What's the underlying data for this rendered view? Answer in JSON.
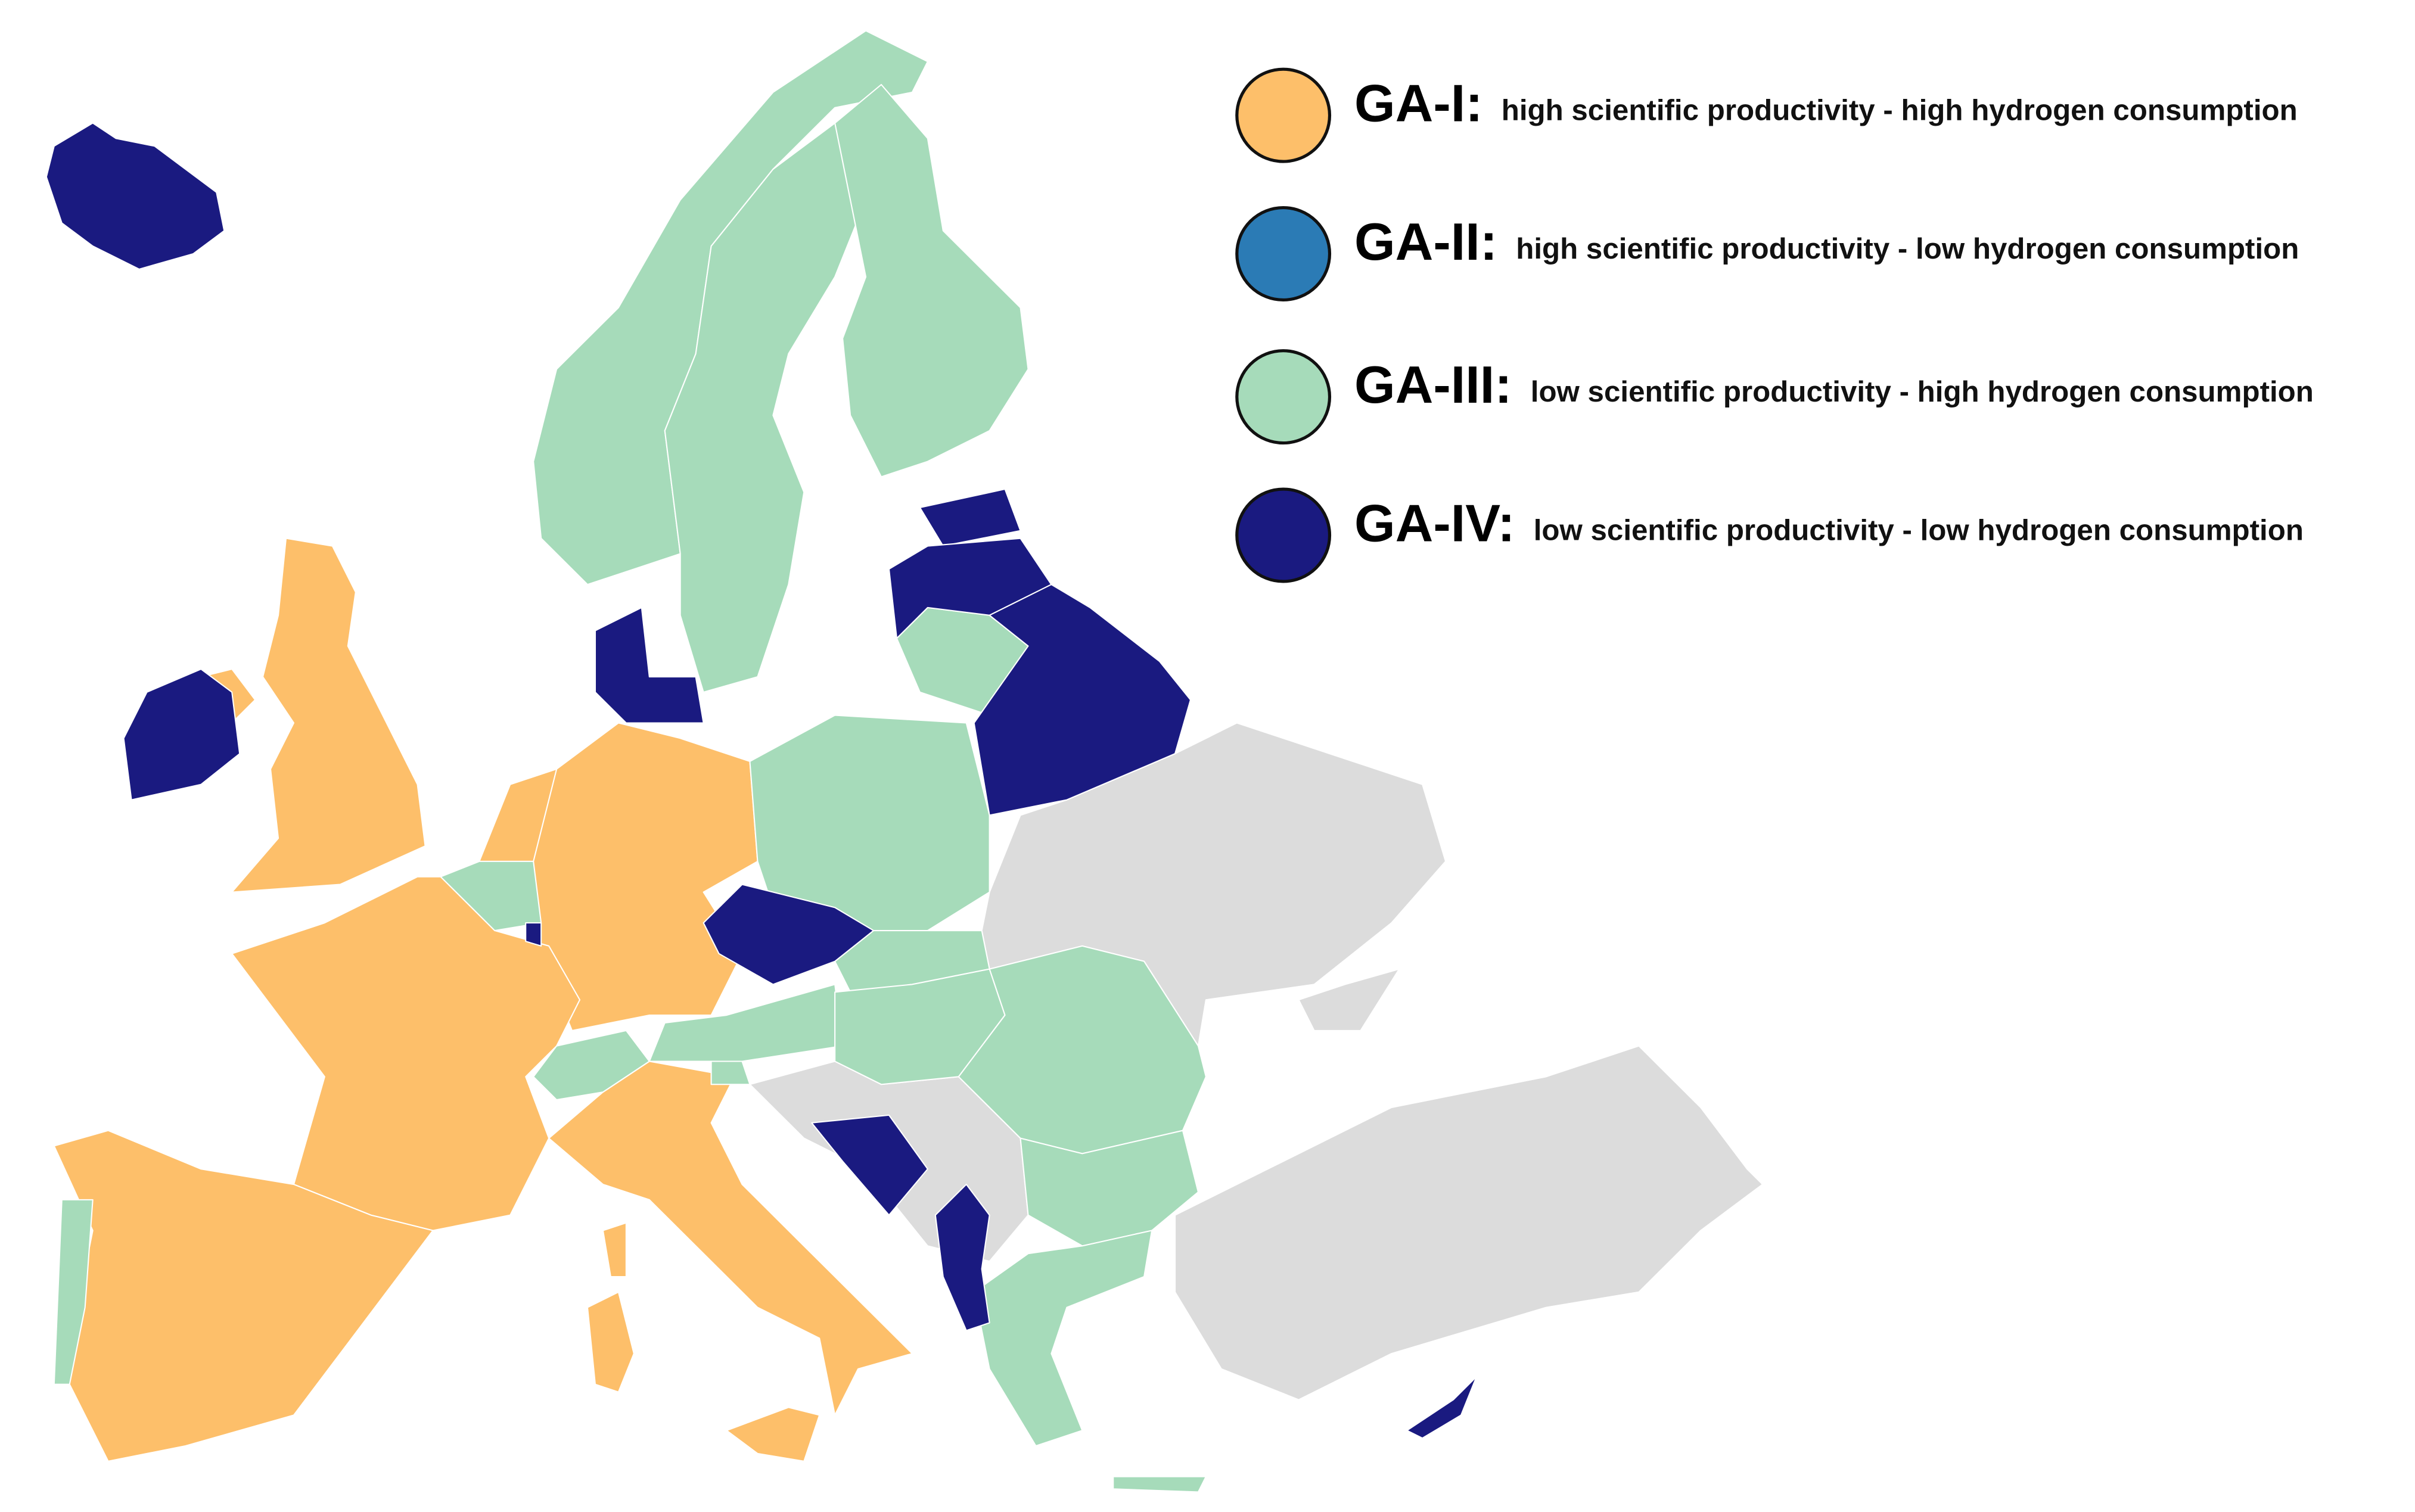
{
  "legend": {
    "items": [
      {
        "label": "GA-I:",
        "description": "high scientific productivity - high hydrogen consumption",
        "color": "#fdbf6a"
      },
      {
        "label": "GA-II:",
        "description": "high scientific productivity - low hydrogen consumption",
        "color": "#2b7bb5"
      },
      {
        "label": "GA-III:",
        "description": "low scientific productivity - high hydrogen consumption",
        "color": "#a6dbba"
      },
      {
        "label": "GA-IV:",
        "description": "low scientific productivity - low hydrogen consumption",
        "color": "#1a1a80"
      }
    ]
  }
}
